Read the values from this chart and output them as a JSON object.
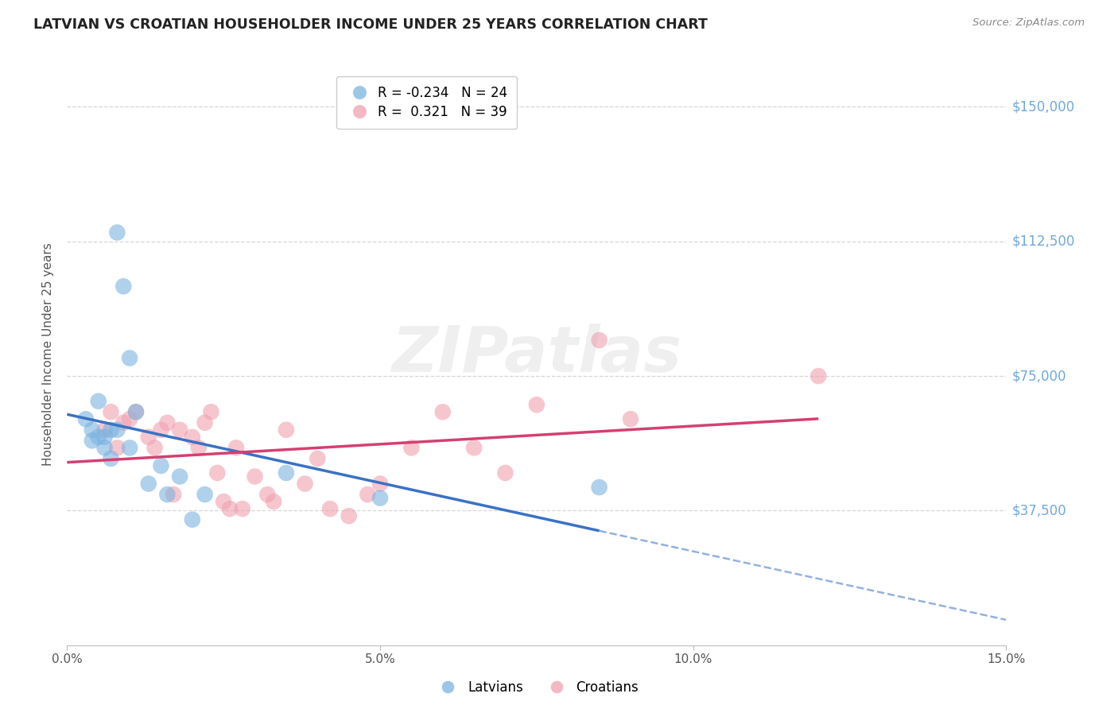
{
  "title": "LATVIAN VS CROATIAN HOUSEHOLDER INCOME UNDER 25 YEARS CORRELATION CHART",
  "source": "Source: ZipAtlas.com",
  "ylabel": "Householder Income Under 25 years",
  "xlim": [
    0.0,
    0.15
  ],
  "ylim": [
    0,
    162000
  ],
  "ytick_labels": [
    "$37,500",
    "$75,000",
    "$112,500",
    "$150,000"
  ],
  "ytick_values": [
    37500,
    75000,
    112500,
    150000
  ],
  "latvian_color": "#7ab3e0",
  "croatian_color": "#f0a0b0",
  "latvian_line_color": "#3a72c4",
  "croatian_line_color": "#d44070",
  "latvian_R": -0.234,
  "latvian_N": 24,
  "croatian_R": 0.321,
  "croatian_N": 39,
  "latvian_x": [
    0.003,
    0.004,
    0.004,
    0.005,
    0.005,
    0.006,
    0.006,
    0.007,
    0.007,
    0.008,
    0.008,
    0.009,
    0.01,
    0.01,
    0.011,
    0.013,
    0.015,
    0.016,
    0.018,
    0.02,
    0.022,
    0.035,
    0.05,
    0.085
  ],
  "latvian_y": [
    63000,
    60000,
    57000,
    58000,
    68000,
    58000,
    55000,
    52000,
    60000,
    60000,
    115000,
    100000,
    80000,
    55000,
    65000,
    45000,
    50000,
    42000,
    47000,
    35000,
    42000,
    48000,
    41000,
    44000
  ],
  "croatian_x": [
    0.006,
    0.007,
    0.008,
    0.009,
    0.01,
    0.011,
    0.013,
    0.014,
    0.015,
    0.016,
    0.017,
    0.018,
    0.02,
    0.021,
    0.022,
    0.023,
    0.024,
    0.025,
    0.026,
    0.027,
    0.028,
    0.03,
    0.032,
    0.033,
    0.035,
    0.038,
    0.04,
    0.042,
    0.045,
    0.048,
    0.05,
    0.055,
    0.06,
    0.065,
    0.07,
    0.075,
    0.085,
    0.09,
    0.12
  ],
  "croatian_y": [
    60000,
    65000,
    55000,
    62000,
    63000,
    65000,
    58000,
    55000,
    60000,
    62000,
    42000,
    60000,
    58000,
    55000,
    62000,
    65000,
    48000,
    40000,
    38000,
    55000,
    38000,
    47000,
    42000,
    40000,
    60000,
    45000,
    52000,
    38000,
    36000,
    42000,
    45000,
    55000,
    65000,
    55000,
    48000,
    67000,
    85000,
    63000,
    75000
  ],
  "background_color": "#ffffff",
  "grid_color": "#cccccc",
  "title_color": "#222222",
  "axis_label_color": "#555555",
  "right_label_color": "#6fa8dc",
  "watermark_text": "ZIPatlas"
}
